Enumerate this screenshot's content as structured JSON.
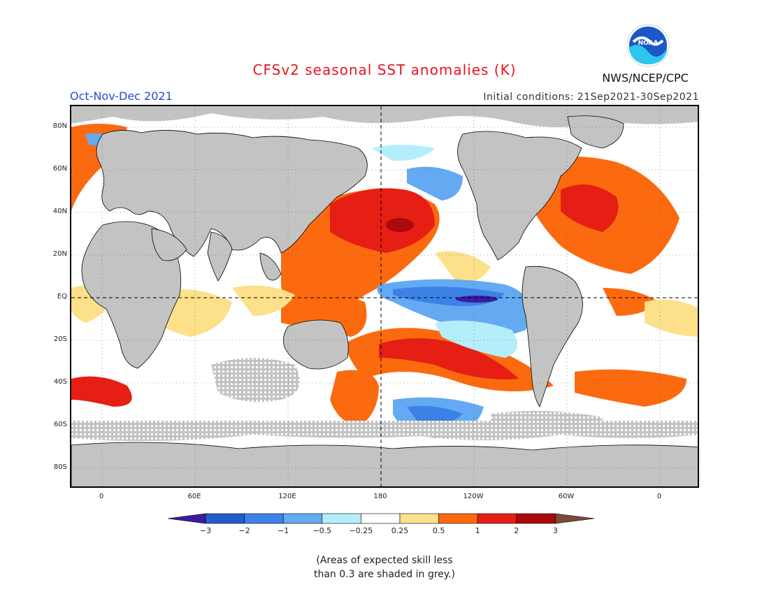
{
  "title": "CFSv2 seasonal SST anomalies (K)",
  "season": "Oct-Nov-Dec 2021",
  "initial_conditions": "Initial conditions: 21Sep2021-30Sep2021",
  "organization": "NWS/NCEP/CPC",
  "logo": {
    "name": "noaa-logo",
    "text": "NOAA"
  },
  "lat_labels": [
    "80N",
    "60N",
    "40N",
    "20N",
    "EQ",
    "20S",
    "40S",
    "60S",
    "80S"
  ],
  "lon_labels": [
    "0",
    "60E",
    "120E",
    "180",
    "120W",
    "60W",
    "0"
  ],
  "colorbar": {
    "ticks": [
      "−3",
      "−2",
      "−1",
      "−0.5",
      "−0.25",
      "0.25",
      "0.5",
      "1",
      "2",
      "3"
    ],
    "colors": [
      "#3c1ba0",
      "#1f5ec8",
      "#3c82e6",
      "#64aaf2",
      "#b4eefa",
      "#ffffff",
      "#fde08a",
      "#fc6a0f",
      "#e61e14",
      "#aa0a0a",
      "#7a4a3a"
    ]
  },
  "skill_note": [
    "(Areas of expected skill less",
    "than 0.3 are shaded in grey.)"
  ],
  "colors": {
    "land": "#c3c3c3",
    "title": "#e8141e",
    "season": "#2a49d6"
  }
}
